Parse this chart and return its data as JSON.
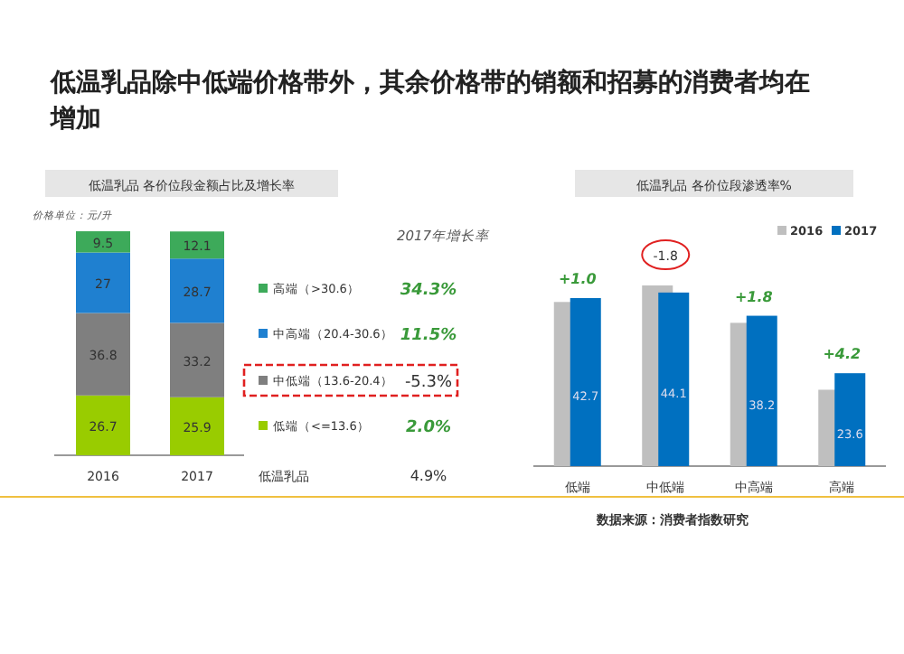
{
  "chart_data": [
    {
      "type": "bar",
      "stacked": true,
      "data_labels": true,
      "legend": "right",
      "subtitle": "低温乳品除中低端价格带外，其余价格带的销额和招募的消费者均在增加",
      "title": "低温乳品  各价位段金额占比及增长率",
      "categories": [
        "2016",
        "2017"
      ],
      "series": [
        {
          "name": "低端（<=13.6）",
          "color": "#99cc00",
          "values": [
            26.7,
            25.9
          ]
        },
        {
          "name": "中低端（13.6-20.4）",
          "color": "#7f7f7f",
          "values": [
            36.8,
            33.2
          ]
        },
        {
          "name": "中高端（20.4-30.6）",
          "color": "#1f80d0",
          "values": [
            27.0,
            28.7
          ]
        },
        {
          "name": "高端（>30.6）",
          "color": "#3daa5a",
          "values": [
            9.5,
            12.1
          ]
        }
      ],
      "annotations": [
        "2017年增长率",
        "2.0%",
        "-5.3%",
        "11.5%",
        "34.3%",
        "低温乳品",
        "4.9%",
        "价格单位：元/升"
      ]
    },
    {
      "type": "bar",
      "legend": "top right",
      "title": "低温乳品  各价位段渗透率%",
      "categories": [
        "低端",
        "中低端",
        "中高端",
        "高端"
      ],
      "series": [
        {
          "name": "2016",
          "color": "#bfbfbf",
          "values": [
            41.7,
            45.9,
            36.4,
            19.4
          ]
        },
        {
          "name": "2017",
          "color": "#0070c0",
          "values": [
            42.7,
            44.1,
            38.2,
            23.6
          ],
          "value_labels": [
            "42.7",
            "44.1",
            "38.2",
            "23.6"
          ]
        }
      ],
      "annotations": [
        {
          "text": "+1.0",
          "x": "低端",
          "y": 42.7
        },
        {
          "text": "-1.8",
          "x": "中低端",
          "y": 45.9
        },
        {
          "text": "+1.8",
          "x": "中高端",
          "y": 38.2
        },
        {
          "text": "+4.2",
          "x": "高端",
          "y": 23.6
        },
        "数据来源：消费者指数研究"
      ]
    }
  ]
}
